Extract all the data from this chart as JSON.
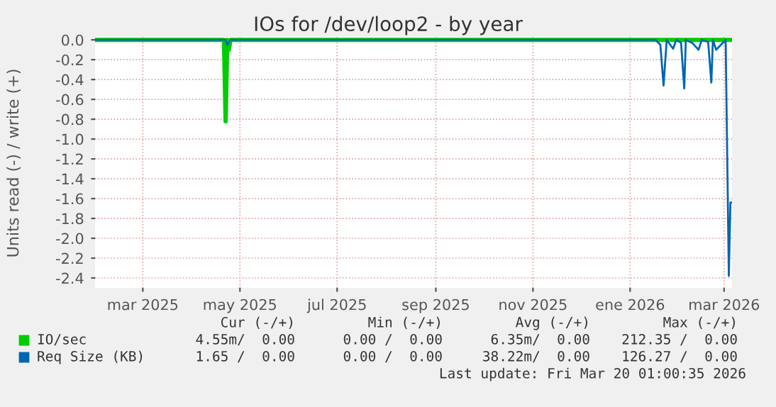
{
  "chart_data": {
    "type": "line",
    "title": "IOs for /dev/loop2 - by year",
    "ylabel": "Units read (-) / write (+)",
    "xlim": [
      "2025-02-13",
      "2026-03-20"
    ],
    "xticks": [
      {
        "value": "2025-03-15",
        "label": "mar 2025"
      },
      {
        "value": "2025-05-15",
        "label": "may 2025"
      },
      {
        "value": "2025-07-15",
        "label": "jul 2025"
      },
      {
        "value": "2025-09-15",
        "label": "sep 2025"
      },
      {
        "value": "2025-11-15",
        "label": "nov 2025"
      },
      {
        "value": "2026-01-15",
        "label": "ene 2026"
      },
      {
        "value": "2026-03-15",
        "label": "mar 2026"
      }
    ],
    "ylim": [
      -2.5,
      0.03
    ],
    "yticks": [
      {
        "value": 0,
        "label": "0.0"
      },
      {
        "value": -0.2,
        "label": "-0.2"
      },
      {
        "value": -0.4,
        "label": "-0.4"
      },
      {
        "value": -0.6,
        "label": "-0.6"
      },
      {
        "value": -0.8,
        "label": "-0.8"
      },
      {
        "value": -1.0,
        "label": "-1.0"
      },
      {
        "value": -1.2,
        "label": "-1.2"
      },
      {
        "value": -1.4,
        "label": "-1.4"
      },
      {
        "value": -1.6,
        "label": "-1.6"
      },
      {
        "value": -1.8,
        "label": "-1.8"
      },
      {
        "value": -2.0,
        "label": "-2.0"
      },
      {
        "value": -2.2,
        "label": "-2.2"
      },
      {
        "value": -2.4,
        "label": "-2.4"
      }
    ],
    "grid": true,
    "legend": "bottom",
    "series": [
      {
        "name": "IO/sec",
        "color": "#00cc00",
        "x": [
          "2025-02-13",
          "2025-05-05",
          "2025-05-06",
          "2025-05-07",
          "2025-05-08",
          "2025-05-09",
          "2026-03-20"
        ],
        "values": [
          0,
          0,
          -0.82,
          0,
          -0.1,
          0,
          0
        ]
      },
      {
        "name": "Req Size (KB)",
        "color": "#0066b3",
        "x": [
          "2025-02-13",
          "2025-05-06",
          "2025-05-07",
          "2025-05-09",
          "2026-01-31",
          "2026-02-03",
          "2026-02-05",
          "2026-02-07",
          "2026-02-11",
          "2026-02-13",
          "2026-02-16",
          "2026-02-18",
          "2026-02-19",
          "2026-02-23",
          "2026-02-27",
          "2026-03-01",
          "2026-03-05",
          "2026-03-07",
          "2026-03-08",
          "2026-03-10",
          "2026-03-13",
          "2026-03-16",
          "2026-03-18",
          "2026-03-19",
          "2026-03-20"
        ],
        "values": [
          0,
          0,
          -0.05,
          0,
          0,
          -0.05,
          -0.46,
          0,
          -0.09,
          0,
          -0.03,
          -0.49,
          0,
          -0.03,
          -0.1,
          0,
          -0.02,
          -0.43,
          0,
          -0.1,
          -0.05,
          0,
          -2.38,
          -1.64,
          -1.64
        ]
      }
    ],
    "annotations": [
      "Cur (-/+)",
      "Min (-/+)",
      "Avg (-/+)",
      "Max (-/+)",
      "4.55m/  0.00",
      "0.00 /  0.00",
      "6.35m/  0.00",
      "212.35 /  0.00",
      "1.65 /  0.00",
      "0.00 /  0.00",
      "38.22m/  0.00",
      "126.27 /  0.00",
      "Last update: Fri Mar 20 01:00:35 2026"
    ]
  }
}
